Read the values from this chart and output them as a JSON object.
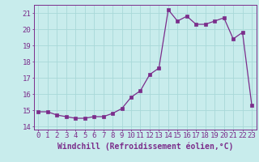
{
  "x": [
    0,
    1,
    2,
    3,
    4,
    5,
    6,
    7,
    8,
    9,
    10,
    11,
    12,
    13,
    14,
    15,
    16,
    17,
    18,
    19,
    20,
    21,
    22,
    23
  ],
  "y": [
    14.9,
    14.9,
    14.7,
    14.6,
    14.5,
    14.5,
    14.6,
    14.6,
    14.8,
    15.1,
    15.8,
    16.2,
    17.2,
    17.6,
    21.2,
    20.5,
    20.8,
    20.3,
    20.3,
    20.5,
    20.7,
    19.4,
    19.8,
    15.3
  ],
  "line_color": "#7b2d8b",
  "marker_color": "#7b2d8b",
  "bg_color": "#c8ecec",
  "grid_color": "#a8d8d8",
  "axis_color": "#7b2d8b",
  "xlabel": "Windchill (Refroidissement éolien,°C)",
  "xlim": [
    -0.5,
    23.5
  ],
  "ylim": [
    13.8,
    21.5
  ],
  "yticks": [
    14,
    15,
    16,
    17,
    18,
    19,
    20,
    21
  ],
  "xticks": [
    0,
    1,
    2,
    3,
    4,
    5,
    6,
    7,
    8,
    9,
    10,
    11,
    12,
    13,
    14,
    15,
    16,
    17,
    18,
    19,
    20,
    21,
    22,
    23
  ],
  "tick_fontsize": 6.5,
  "xlabel_fontsize": 7.0
}
